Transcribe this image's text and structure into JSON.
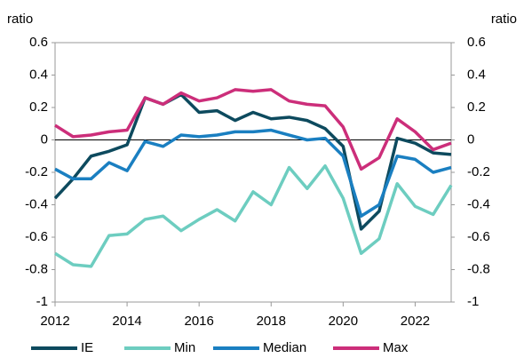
{
  "chart_data": {
    "type": "line",
    "ylabel": "ratio",
    "y2label": "ratio",
    "x": [
      2012,
      2012.5,
      2013,
      2013.5,
      2014,
      2014.5,
      2015,
      2015.5,
      2016,
      2016.5,
      2017,
      2017.5,
      2018,
      2018.5,
      2019,
      2019.5,
      2020,
      2020.5,
      2021,
      2021.5,
      2022,
      2022.5,
      2023
    ],
    "series": [
      {
        "name": "IE",
        "color": "#0d4a5e",
        "values": [
          -0.36,
          -0.24,
          -0.1,
          -0.07,
          -0.03,
          0.26,
          0.22,
          0.28,
          0.17,
          0.18,
          0.12,
          0.17,
          0.13,
          0.14,
          0.12,
          0.07,
          -0.04,
          -0.55,
          -0.44,
          0.01,
          -0.02,
          -0.08,
          -0.09
        ]
      },
      {
        "name": "Min",
        "color": "#6dcdc0",
        "values": [
          -0.7,
          -0.77,
          -0.78,
          -0.59,
          -0.58,
          -0.49,
          -0.47,
          -0.56,
          -0.49,
          -0.43,
          -0.5,
          -0.32,
          -0.4,
          -0.17,
          -0.3,
          -0.16,
          -0.36,
          -0.7,
          -0.61,
          -0.27,
          -0.41,
          -0.46,
          -0.28
        ]
      },
      {
        "name": "Median",
        "color": "#1a7fc1",
        "values": [
          -0.18,
          -0.24,
          -0.24,
          -0.14,
          -0.19,
          -0.01,
          -0.04,
          0.03,
          0.02,
          0.03,
          0.05,
          0.05,
          0.06,
          0.03,
          0.0,
          0.01,
          -0.1,
          -0.47,
          -0.4,
          -0.1,
          -0.12,
          -0.2,
          -0.17
        ]
      },
      {
        "name": "Max",
        "color": "#cc2e7a",
        "values": [
          0.09,
          0.02,
          0.03,
          0.05,
          0.06,
          0.26,
          0.22,
          0.29,
          0.24,
          0.26,
          0.31,
          0.3,
          0.31,
          0.24,
          0.22,
          0.21,
          0.08,
          -0.18,
          -0.11,
          0.13,
          0.05,
          -0.06,
          -0.02
        ]
      }
    ],
    "xlim": [
      2012,
      2023
    ],
    "xticks": [
      2012,
      2014,
      2016,
      2018,
      2020,
      2022
    ],
    "ylim": [
      -1,
      0.6
    ],
    "yticks": [
      -1,
      -0.8,
      -0.6,
      -0.4,
      -0.2,
      0,
      0.2,
      0.4,
      0.6
    ],
    "y2lim": [
      -1,
      0.6
    ],
    "y2ticks": [
      -1,
      -0.8,
      -0.6,
      -0.4,
      -0.2,
      0,
      0.2,
      0.4,
      0.6
    ],
    "grid": false
  }
}
